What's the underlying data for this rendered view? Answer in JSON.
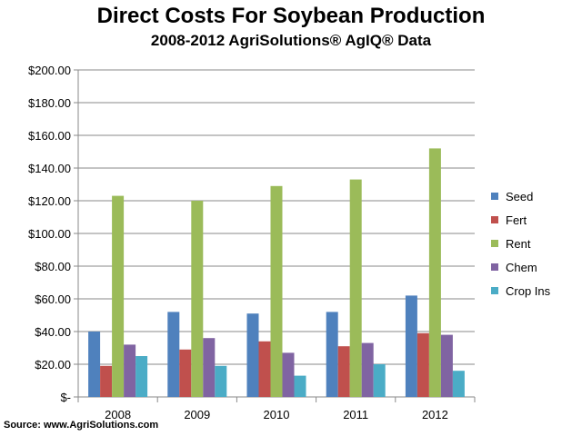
{
  "chart_data": {
    "type": "bar",
    "title": "Direct Costs For Soybean Production",
    "subtitle": "2008-2012 AgriSolutions® AgIQ® Data",
    "categories": [
      "2008",
      "2009",
      "2010",
      "2011",
      "2012"
    ],
    "series": [
      {
        "name": "Seed",
        "color": "#4F81BD",
        "values": [
          40,
          52,
          51,
          52,
          62
        ]
      },
      {
        "name": "Fert",
        "color": "#C0504D",
        "values": [
          19,
          29,
          34,
          31,
          39
        ]
      },
      {
        "name": "Rent",
        "color": "#9BBB59",
        "values": [
          123,
          120,
          129,
          133,
          152
        ]
      },
      {
        "name": "Chem",
        "color": "#8064A2",
        "values": [
          32,
          36,
          27,
          33,
          38
        ]
      },
      {
        "name": "Crop Ins",
        "color": "#4BACC6",
        "values": [
          25,
          19,
          13,
          20,
          16
        ]
      }
    ],
    "ylim": [
      0,
      200
    ],
    "yticks": [
      0,
      20,
      40,
      60,
      80,
      100,
      120,
      140,
      160,
      180,
      200
    ],
    "ytick_labels": [
      "$-",
      "$20.00",
      "$40.00",
      "$60.00",
      "$80.00",
      "$100.00",
      "$120.00",
      "$140.00",
      "$160.00",
      "$180.00",
      "$200.00"
    ],
    "xlabel": "",
    "ylabel": "",
    "grid": true,
    "legend_position": "right"
  },
  "source": "Source: www.AgriSolutions.com"
}
